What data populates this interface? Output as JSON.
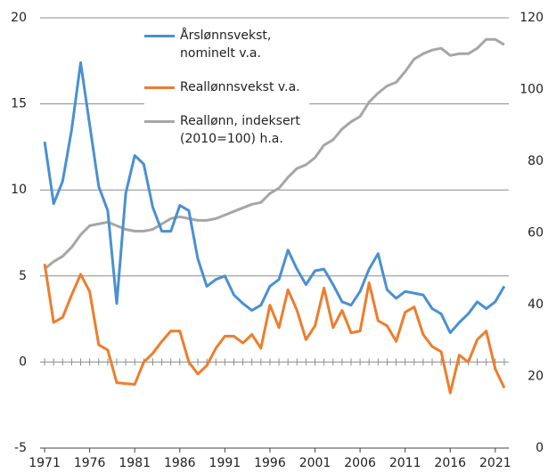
{
  "chart_data": {
    "type": "line",
    "x": [
      1971,
      1972,
      1973,
      1974,
      1975,
      1976,
      1977,
      1978,
      1979,
      1980,
      1981,
      1982,
      1983,
      1984,
      1985,
      1986,
      1987,
      1988,
      1989,
      1990,
      1991,
      1992,
      1993,
      1994,
      1995,
      1996,
      1997,
      1998,
      1999,
      2000,
      2001,
      2002,
      2003,
      2004,
      2005,
      2006,
      2007,
      2008,
      2009,
      2010,
      2011,
      2012,
      2013,
      2014,
      2015,
      2016,
      2017,
      2018,
      2019,
      2020,
      2021,
      2022
    ],
    "series": [
      {
        "name": "Årslønnsvekst, nominelt v.a.",
        "color": "#4a90d0",
        "values": [
          12.8,
          9.2,
          10.5,
          13.5,
          17.4,
          13.8,
          10.2,
          8.8,
          3.4,
          9.8,
          12.0,
          11.5,
          9.0,
          7.6,
          7.6,
          9.1,
          8.8,
          6.0,
          4.4,
          4.8,
          5.0,
          3.9,
          3.4,
          3.0,
          3.3,
          4.4,
          4.8,
          6.5,
          5.4,
          4.5,
          5.3,
          5.4,
          4.5,
          3.5,
          3.3,
          4.1,
          5.4,
          6.3,
          4.2,
          3.7,
          4.1,
          4.0,
          3.9,
          3.1,
          2.8,
          1.7,
          2.3,
          2.8,
          3.5,
          3.1,
          3.5,
          4.4
        ]
      },
      {
        "name": "Reallønnsvekst v.a.",
        "color": "#ee7d2c",
        "values": [
          5.7,
          2.3,
          2.6,
          3.9,
          5.1,
          4.1,
          1.0,
          0.7,
          -1.2,
          -1.25,
          -1.3,
          0.0,
          0.5,
          1.2,
          1.8,
          1.8,
          0.0,
          -0.7,
          -0.2,
          0.8,
          1.5,
          1.5,
          1.1,
          1.6,
          0.8,
          3.3,
          2.0,
          4.2,
          3.0,
          1.3,
          2.1,
          4.3,
          2.0,
          3.0,
          1.7,
          1.8,
          4.6,
          2.4,
          2.1,
          1.2,
          2.9,
          3.2,
          1.6,
          0.9,
          0.6,
          -1.8,
          0.4,
          0.0,
          1.3,
          1.8,
          -0.4,
          -1.5
        ]
      },
      {
        "name": "Reallønn, indeksert (2010=100) h.a.",
        "color": "#a6a6a6",
        "axis": "y2",
        "values": [
          50,
          52,
          53.5,
          56,
          59.5,
          62,
          62.5,
          63,
          62,
          61,
          60.5,
          60.5,
          61,
          62.5,
          64,
          64.5,
          64,
          63.5,
          63.5,
          64,
          65,
          66,
          67,
          68,
          68.5,
          71,
          72.5,
          75.5,
          78,
          79,
          81,
          84.5,
          86,
          89,
          91,
          92.5,
          96.5,
          99,
          101,
          102,
          105,
          108.5,
          110,
          111,
          111.5,
          109.5,
          110,
          110,
          111.5,
          114,
          114,
          112.5
        ]
      }
    ],
    "xlim": [
      1970.5,
      2022.5
    ],
    "xticks": [
      1971,
      1976,
      1981,
      1986,
      1991,
      1996,
      2001,
      2006,
      2011,
      2016,
      2021
    ],
    "ylim": [
      -5,
      20
    ],
    "yticks": [
      -5,
      0,
      5,
      10,
      15,
      20
    ],
    "y2lim": [
      0,
      120
    ],
    "y2ticks": [
      0,
      20,
      40,
      60,
      80,
      100,
      120
    ],
    "grid": true
  }
}
